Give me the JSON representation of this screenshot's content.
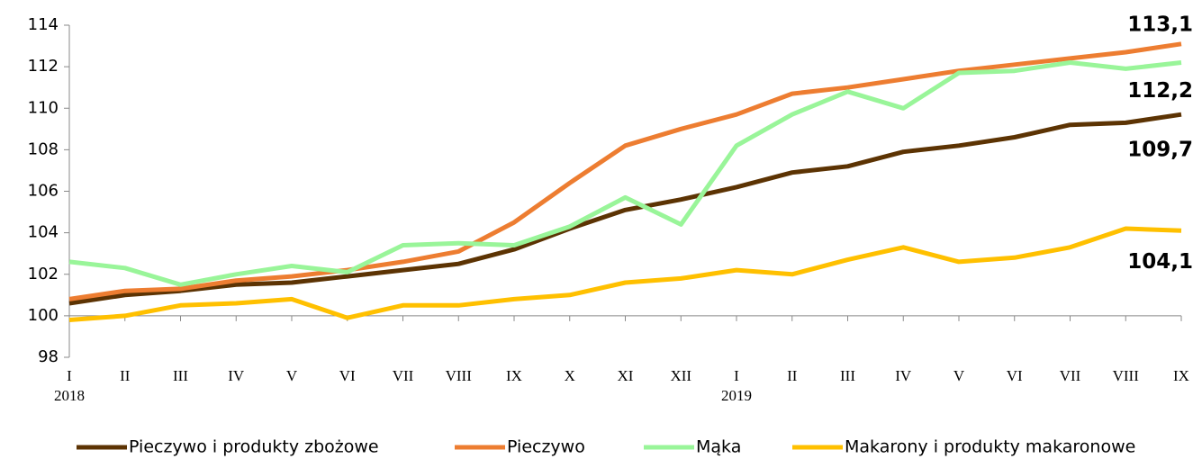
{
  "chart_data": {
    "type": "line",
    "categories": [
      "I",
      "II",
      "III",
      "IV",
      "V",
      "VI",
      "VII",
      "VIII",
      "IX",
      "X",
      "XI",
      "XII",
      "I",
      "II",
      "III",
      "IV",
      "V",
      "VI",
      "VII",
      "VIII",
      "IX"
    ],
    "category_years": [
      "2018",
      null,
      null,
      null,
      null,
      null,
      null,
      null,
      null,
      null,
      null,
      null,
      "2019",
      null,
      null,
      null,
      null,
      null,
      null,
      null,
      null
    ],
    "ylim": [
      98,
      114
    ],
    "yticks": [
      98,
      100,
      102,
      104,
      106,
      108,
      110,
      112,
      114
    ],
    "series": [
      {
        "name": "Pieczywo i produkty zbożowe",
        "color": "#5c3303",
        "values": [
          100.6,
          101.0,
          101.2,
          101.5,
          101.6,
          101.9,
          102.2,
          102.5,
          103.2,
          104.2,
          105.1,
          105.6,
          106.2,
          106.9,
          107.2,
          107.9,
          108.2,
          108.6,
          109.2,
          109.3,
          109.7
        ],
        "value_labels": [
          null,
          null,
          null,
          null,
          null,
          null,
          null,
          null,
          null,
          null,
          null,
          null,
          null,
          null,
          null,
          null,
          null,
          null,
          null,
          null,
          "109,7"
        ]
      },
      {
        "name": "Pieczywo",
        "color": "#ed7d31",
        "values": [
          100.8,
          101.2,
          101.3,
          101.7,
          101.9,
          102.2,
          102.6,
          103.1,
          104.5,
          106.4,
          108.2,
          109.0,
          109.7,
          110.7,
          111.0,
          111.4,
          111.8,
          112.1,
          112.4,
          112.7,
          113.1
        ],
        "value_labels": [
          null,
          null,
          null,
          null,
          null,
          null,
          null,
          null,
          null,
          null,
          null,
          null,
          null,
          null,
          null,
          null,
          null,
          null,
          null,
          null,
          "113,1"
        ]
      },
      {
        "name": "Mąka",
        "color": "#99f599",
        "values": [
          102.6,
          102.3,
          101.5,
          102.0,
          102.4,
          102.1,
          103.4,
          103.5,
          103.4,
          104.3,
          105.7,
          104.4,
          108.2,
          109.7,
          110.8,
          110.0,
          111.7,
          111.8,
          112.2,
          111.9,
          112.2
        ],
        "value_labels": [
          null,
          null,
          null,
          null,
          null,
          null,
          null,
          null,
          null,
          null,
          null,
          null,
          null,
          null,
          null,
          null,
          null,
          null,
          null,
          null,
          "112,2"
        ]
      },
      {
        "name": "Makarony i produkty makaronowe",
        "color": "#ffc000",
        "values": [
          99.8,
          100.0,
          100.5,
          100.6,
          100.8,
          99.9,
          100.5,
          100.5,
          100.8,
          101.0,
          101.6,
          101.8,
          102.2,
          102.0,
          102.7,
          103.3,
          102.6,
          102.8,
          103.3,
          104.2,
          104.1
        ],
        "value_labels": [
          null,
          null,
          null,
          null,
          null,
          null,
          null,
          null,
          null,
          null,
          null,
          null,
          null,
          null,
          null,
          null,
          null,
          null,
          null,
          null,
          "104,1"
        ]
      }
    ]
  }
}
